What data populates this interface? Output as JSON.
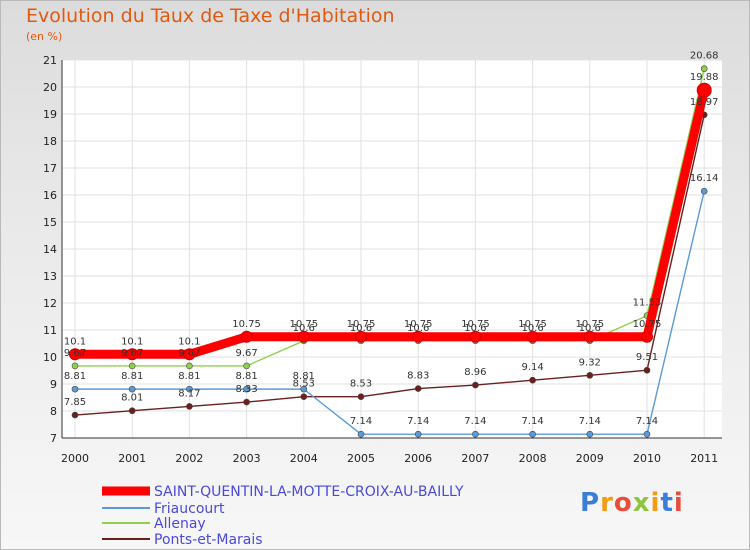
{
  "chart_data": {
    "type": "line",
    "title": "Evolution du Taux de Taxe d'Habitation",
    "subtitle": "(en %)",
    "categories": [
      "2000",
      "2001",
      "2002",
      "2003",
      "2004",
      "2005",
      "2006",
      "2007",
      "2008",
      "2009",
      "2010",
      "2011"
    ],
    "ylim": [
      7,
      21
    ],
    "yticks": [
      "7",
      "8",
      "9",
      "10",
      "11",
      "12",
      "13",
      "14",
      "15",
      "16",
      "17",
      "18",
      "19",
      "20",
      "21"
    ],
    "grid": true,
    "series": [
      {
        "name": "Ponts-et-Marais",
        "color": "#6b1f1f",
        "values": [
          7.85,
          8.01,
          8.17,
          8.33,
          8.53,
          8.53,
          8.83,
          8.96,
          9.14,
          9.32,
          9.51,
          18.97
        ],
        "labels": [
          "7.85",
          "8.01",
          "8.17",
          "8.33",
          "8.53",
          "8.53",
          "8.83",
          "8.96",
          "9.14",
          "9.32",
          "9.51",
          "18.97"
        ]
      },
      {
        "name": "Friaucourt",
        "color": "#5b9bd5",
        "values": [
          8.81,
          8.81,
          8.81,
          8.81,
          8.81,
          7.14,
          7.14,
          7.14,
          7.14,
          7.14,
          7.14,
          16.14
        ],
        "labels": [
          "8.81",
          "8.81",
          "8.81",
          "8.81",
          "8.81",
          "7.14",
          "7.14",
          "7.14",
          "7.14",
          "7.14",
          "7.14",
          "16.14"
        ]
      },
      {
        "name": "Allenay",
        "color": "#8fd14f",
        "values": [
          9.67,
          9.67,
          9.67,
          9.67,
          10.6,
          10.6,
          10.6,
          10.6,
          10.6,
          10.6,
          11.53,
          20.68
        ],
        "labels": [
          "9.67",
          "9.67",
          "9.67",
          "9.67",
          "10.6",
          "10.6",
          "10.6",
          "10.6",
          "10.6",
          "10.6",
          "11.53",
          "20.68"
        ]
      },
      {
        "name": "SAINT-QUENTIN-LA-MOTTE-CROIX-AU-BAILLY",
        "color": "#ff0000",
        "values": [
          10.1,
          10.1,
          10.1,
          10.75,
          10.75,
          10.75,
          10.75,
          10.75,
          10.75,
          10.75,
          10.75,
          19.88
        ],
        "labels": [
          "10.1",
          "10.1",
          "10.1",
          "10.75",
          "10.75",
          "10.75",
          "10.75",
          "10.75",
          "10.75",
          "10.75",
          "10.75",
          "19.88"
        ]
      }
    ],
    "legend": [
      "SAINT-QUENTIN-LA-MOTTE-CROIX-AU-BAILLY",
      "Friaucourt",
      "Allenay",
      "Ponts-et-Marais"
    ]
  },
  "logo": {
    "text": "Proxiti"
  }
}
